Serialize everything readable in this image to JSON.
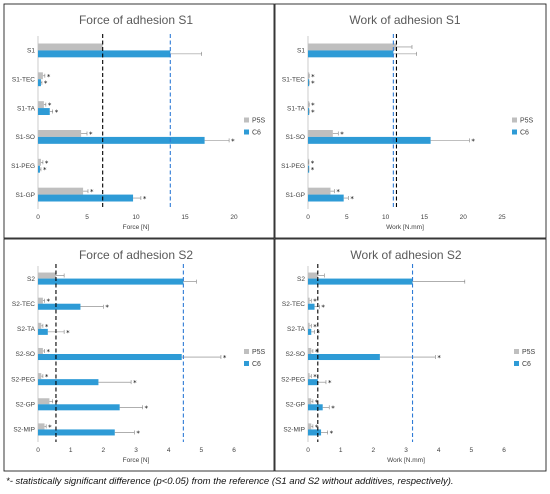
{
  "chart_data": [
    {
      "type": "bar",
      "title": "Force of adhesion S1",
      "xlabel": "Force [N]",
      "xlim": [
        0,
        20
      ],
      "xticks": [
        0,
        5,
        10,
        15,
        20
      ],
      "categories": [
        "S1",
        "S1-TEC",
        "S1-TA",
        "S1-SO",
        "S1-PEG",
        "S1-GP"
      ],
      "series": [
        {
          "name": "P5S",
          "color": "#bfbfbf",
          "values": [
            6.6,
            0.5,
            0.6,
            4.4,
            0.3,
            4.6
          ],
          "errors": [
            0,
            0.2,
            0.2,
            0.6,
            0.2,
            0.5
          ]
        },
        {
          "name": "C6",
          "color": "#2e9bd6",
          "values": [
            13.5,
            0.3,
            1.2,
            17.0,
            0.2,
            9.7
          ],
          "errors": [
            3.2,
            0.1,
            0.3,
            2.5,
            0.1,
            0.8
          ]
        }
      ],
      "significant": {
        "P5S": [
          false,
          true,
          true,
          true,
          true,
          true
        ],
        "C6": [
          false,
          true,
          true,
          true,
          true,
          true
        ]
      },
      "ref_lines": [
        {
          "value": 6.6,
          "color": "#000000"
        },
        {
          "value": 13.5,
          "color": "#2e7bd6"
        }
      ],
      "legend": "right"
    },
    {
      "type": "bar",
      "title": "Work of adhesion S1",
      "xlabel": "Work [N.mm]",
      "xlim": [
        0,
        25
      ],
      "xticks": [
        0,
        5,
        10,
        15,
        20,
        25
      ],
      "categories": [
        "S1",
        "S1-TEC",
        "S1-TA",
        "S1-SO",
        "S1-PEG",
        "S1-GP"
      ],
      "series": [
        {
          "name": "P5S",
          "color": "#bfbfbf",
          "values": [
            11.4,
            0.1,
            0.1,
            3.2,
            0.05,
            2.9
          ],
          "errors": [
            2.0,
            0.05,
            0.05,
            0.7,
            0.05,
            0.5
          ]
        },
        {
          "name": "C6",
          "color": "#2e9bd6",
          "values": [
            11.0,
            0.1,
            0.1,
            15.8,
            0.05,
            4.6
          ],
          "errors": [
            3.0,
            0.05,
            0.05,
            5.0,
            0.05,
            0.6
          ]
        }
      ],
      "significant": {
        "P5S": [
          false,
          true,
          true,
          true,
          true,
          true
        ],
        "C6": [
          false,
          true,
          true,
          true,
          true,
          true
        ]
      },
      "ref_lines": [
        {
          "value": 11.4,
          "color": "#000000"
        },
        {
          "value": 11.0,
          "color": "#2e7bd6"
        }
      ],
      "legend": "right"
    },
    {
      "type": "bar",
      "title": "Force of adhesion S2",
      "xlabel": "Force [N]",
      "xlim": [
        0,
        6
      ],
      "xticks": [
        0,
        1,
        2,
        3,
        4,
        5,
        6
      ],
      "categories": [
        "S2",
        "S2-TEC",
        "S2-TA",
        "S2-SO",
        "S2-PEG",
        "S2-GP",
        "S2-MIP"
      ],
      "series": [
        {
          "name": "P5S",
          "color": "#bfbfbf",
          "values": [
            0.55,
            0.15,
            0.1,
            0.15,
            0.1,
            0.35,
            0.2
          ],
          "errors": [
            0.25,
            0.05,
            0.05,
            0.05,
            0.05,
            0.1,
            0.05
          ]
        },
        {
          "name": "C6",
          "color": "#2e9bd6",
          "values": [
            4.45,
            1.3,
            0.3,
            4.4,
            1.85,
            2.5,
            2.35
          ],
          "errors": [
            0.4,
            0.7,
            0.5,
            1.2,
            1.0,
            0.7,
            0.6
          ]
        }
      ],
      "significant": {
        "P5S": [
          false,
          true,
          true,
          true,
          true,
          true,
          true
        ],
        "C6": [
          false,
          true,
          true,
          true,
          true,
          true,
          true
        ]
      },
      "ref_lines": [
        {
          "value": 0.55,
          "color": "#000000"
        },
        {
          "value": 4.45,
          "color": "#2e7bd6"
        }
      ],
      "legend": "right"
    },
    {
      "type": "bar",
      "title": "Work of adhesion S2",
      "xlabel": "Work [N.mm]",
      "xlim": [
        0,
        6
      ],
      "xticks": [
        0,
        1,
        2,
        3,
        4,
        5,
        6
      ],
      "categories": [
        "S2",
        "S2-TEC",
        "S2-TA",
        "S2-SO",
        "S2-PEG",
        "S2-GP",
        "S2-MIP"
      ],
      "series": [
        {
          "name": "P5S",
          "color": "#bfbfbf",
          "values": [
            0.3,
            0.05,
            0.05,
            0.1,
            0.05,
            0.1,
            0.1
          ],
          "errors": [
            0.2,
            0.05,
            0.05,
            0.05,
            0.05,
            0.05,
            0.05
          ]
        },
        {
          "name": "C6",
          "color": "#2e9bd6",
          "values": [
            3.2,
            0.2,
            0.1,
            2.2,
            0.3,
            0.45,
            0.4
          ],
          "errors": [
            1.6,
            0.15,
            0.1,
            1.7,
            0.25,
            0.2,
            0.2
          ]
        }
      ],
      "significant": {
        "P5S": [
          false,
          true,
          true,
          true,
          true,
          true,
          true
        ],
        "C6": [
          false,
          true,
          true,
          true,
          true,
          true,
          true
        ]
      },
      "ref_lines": [
        {
          "value": 0.3,
          "color": "#000000"
        },
        {
          "value": 3.2,
          "color": "#2e7bd6"
        }
      ],
      "legend": "right"
    }
  ],
  "footnote": "*- statistically significant difference (p<0.05) from the reference (S1 and S2 without additives, respectively).",
  "significance_marker": "*"
}
